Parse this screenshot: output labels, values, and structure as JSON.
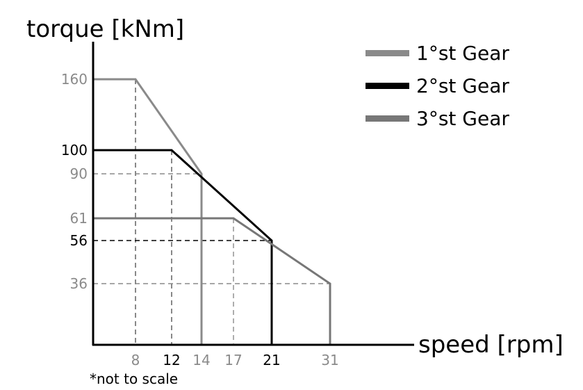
{
  "chart_data": {
    "type": "line",
    "title": "torque [kNm]",
    "xlabel": "speed [rpm]",
    "ylabel": "torque [kNm]",
    "note": "*not to scale",
    "x_ticks": [
      {
        "label": "8",
        "color": "#8a8a8a"
      },
      {
        "label": "12",
        "color": "#000000"
      },
      {
        "label": "14",
        "color": "#8a8a8a"
      },
      {
        "label": "17",
        "color": "#8a8a8a"
      },
      {
        "label": "21",
        "color": "#000000"
      },
      {
        "label": "31",
        "color": "#8a8a8a"
      }
    ],
    "y_ticks": [
      {
        "label": "160",
        "color": "#8a8a8a"
      },
      {
        "label": "100",
        "color": "#000000"
      },
      {
        "label": "90",
        "color": "#8a8a8a"
      },
      {
        "label": "61",
        "color": "#8a8a8a"
      },
      {
        "label": "56",
        "color": "#000000"
      },
      {
        "label": "36",
        "color": "#8a8a8a"
      }
    ],
    "series": [
      {
        "name": "1°st Gear",
        "color": "#8a8a8a",
        "points": [
          [
            0,
            160
          ],
          [
            8,
            160
          ],
          [
            14,
            90
          ],
          [
            14,
            0
          ]
        ]
      },
      {
        "name": "2°st Gear",
        "color": "#000000",
        "points": [
          [
            0,
            100
          ],
          [
            12,
            100
          ],
          [
            21,
            56
          ],
          [
            21,
            0
          ]
        ]
      },
      {
        "name": "3°st Gear",
        "color": "#777777",
        "points": [
          [
            0,
            61
          ],
          [
            17,
            61
          ],
          [
            31,
            36
          ],
          [
            31,
            0
          ]
        ]
      }
    ],
    "guides": [
      {
        "x": 8,
        "y": 160,
        "color": "#555555"
      },
      {
        "x": 12,
        "y": 100,
        "color": "#555555"
      },
      {
        "x": 14,
        "y": 90,
        "color": "#8a8a8a"
      },
      {
        "x": 17,
        "y": 61,
        "color": "#8a8a8a"
      },
      {
        "x": 21,
        "y": 56,
        "color": "#000000"
      },
      {
        "x": 31,
        "y": 36,
        "color": "#8a8a8a"
      }
    ]
  }
}
